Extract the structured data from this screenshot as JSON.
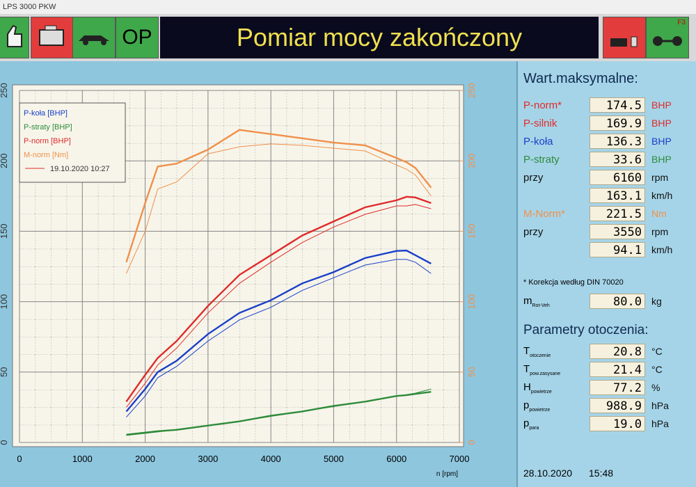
{
  "window": {
    "title": "LPS 3000 PKW"
  },
  "toolbar": {
    "op_button": "OP",
    "status": "Pomiar mocy zakończony",
    "f_key": "F3"
  },
  "chart_data": {
    "type": "line",
    "x": [
      1700,
      2000,
      2200,
      2500,
      3000,
      3500,
      4000,
      4500,
      5000,
      5500,
      6000,
      6160,
      6300,
      6550
    ],
    "xlim": [
      0,
      7000
    ],
    "xticks": [
      0,
      1000,
      2000,
      3000,
      4000,
      5000,
      6000,
      7000
    ],
    "xlabel": "n [rpm]",
    "ylim": [
      0,
      250
    ],
    "yticks": [
      0,
      50,
      100,
      150,
      200,
      250
    ],
    "y2lim": [
      0,
      250
    ],
    "y2ticks": [
      0,
      50,
      100,
      150,
      200,
      250
    ],
    "y2color": "#f0904a",
    "grid": true,
    "legend": "upper left",
    "series": [
      {
        "name": "P-koła [BHP]",
        "color": "#1a3fc8",
        "values": [
          22,
          38,
          50,
          58,
          77,
          92,
          101,
          113,
          121,
          131,
          136,
          136.3,
          133,
          127
        ]
      },
      {
        "name": "P-straty [BHP]",
        "color": "#2e8b3a",
        "values": [
          5.5,
          7,
          8,
          9,
          12,
          15,
          19,
          22,
          26,
          29,
          33,
          33.6,
          34.5,
          36
        ]
      },
      {
        "name": "P-norm [BHP]",
        "color": "#e02a2a",
        "values": [
          29,
          48,
          60,
          72,
          97,
          119,
          133,
          147,
          157,
          167,
          172,
          174.5,
          174,
          170
        ]
      },
      {
        "name": "M-norm [Nm]",
        "color": "#f0904a",
        "axis": "y2",
        "values": [
          128,
          170,
          196,
          198,
          208,
          222,
          219,
          216,
          213,
          211,
          202,
          199,
          195,
          181
        ]
      }
    ],
    "comparison": {
      "name": "19.10.2020 10:27",
      "color": "#e02a2a",
      "series": [
        {
          "color": "#1a3fc8",
          "values": [
            18,
            33,
            46,
            54,
            72,
            87,
            96,
            108,
            117,
            126,
            130,
            130,
            128,
            120
          ]
        },
        {
          "color": "#2e8b3a",
          "values": [
            5,
            6.5,
            7.5,
            9,
            12,
            15,
            18.5,
            22,
            25.5,
            29,
            33,
            34,
            35,
            38
          ]
        },
        {
          "color": "#e02a2a",
          "values": [
            25,
            42,
            55,
            67,
            92,
            113,
            128,
            142,
            153,
            162,
            168,
            168,
            169,
            166
          ]
        },
        {
          "color": "#f0904a",
          "axis": "y2",
          "values": [
            120,
            150,
            180,
            185,
            205,
            210,
            212,
            211,
            209,
            207,
            197,
            194,
            190,
            175
          ]
        }
      ]
    }
  },
  "panel": {
    "title": "Wart.maksymalne:",
    "rows": [
      {
        "label": "P-norm*",
        "value": "174.5",
        "unit": "BHP",
        "color": "#e02a2a"
      },
      {
        "label": "P-silnik",
        "value": "169.9",
        "unit": "BHP",
        "color": "#e02a2a"
      },
      {
        "label": "P-koła",
        "value": "136.3",
        "unit": "BHP",
        "color": "#1a3fc8"
      },
      {
        "label": "P-straty",
        "value": "33.6",
        "unit": "BHP",
        "color": "#2e8b3a"
      },
      {
        "label": "przy",
        "value": "6160",
        "unit": "rpm",
        "color": "#111111"
      },
      {
        "value": "163.1",
        "unit": "km/h",
        "color": "#111111"
      },
      {
        "label": "M-Norm*",
        "value": "221.5",
        "unit": "Nm",
        "color": "#f0904a"
      },
      {
        "label": "przy",
        "value": "3550",
        "unit": "rpm",
        "color": "#111111"
      },
      {
        "value": "94.1",
        "unit": "km/h",
        "color": "#111111"
      }
    ],
    "note": "* Korekcja według DIN 70020",
    "mass": {
      "symbol": "m",
      "sub": "Rot-Veh",
      "value": "80.0",
      "unit": "kg"
    },
    "env_title": "Parametry otoczenia:",
    "env": [
      {
        "symbol": "T",
        "sub": "otoczenie",
        "value": "20.8",
        "unit": "°C"
      },
      {
        "symbol": "T",
        "sub": "pow.zasysane",
        "value": "21.4",
        "unit": "°C"
      },
      {
        "symbol": "H",
        "sub": "powietrze",
        "value": "77.2",
        "unit": "%"
      },
      {
        "symbol": "p",
        "sub": "powietrze",
        "value": "988.9",
        "unit": "hPa"
      },
      {
        "symbol": "p",
        "sub": "para",
        "value": "19.0",
        "unit": "hPa"
      }
    ]
  },
  "footer": {
    "date": "28.10.2020",
    "time": "15:48"
  }
}
